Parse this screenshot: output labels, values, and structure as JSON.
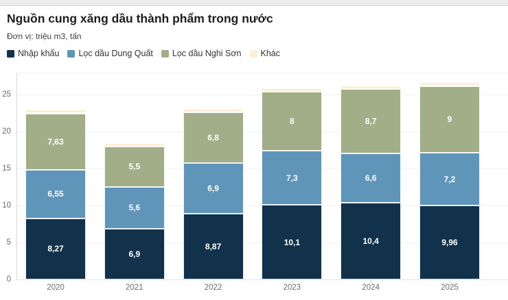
{
  "chart_data": {
    "type": "bar",
    "stacked": true,
    "title": "Nguồn cung xăng dầu thành phẩm trong nước",
    "unit_label": "Đơn vị: triệu m3, tấn",
    "categories": [
      "2020",
      "2021",
      "2022",
      "2023",
      "2024",
      "2025"
    ],
    "series": [
      {
        "name": "Nhập khẩu",
        "color": "#12324b",
        "values": [
          8.27,
          6.9,
          8.87,
          10.1,
          10.4,
          9.96
        ],
        "labels": [
          "8,27",
          "6,9",
          "8,87",
          "10,1",
          "10,4",
          "9,96"
        ]
      },
      {
        "name": "Lọc dầu Dung Quất",
        "color": "#6095ba",
        "values": [
          6.55,
          5.6,
          6.9,
          7.3,
          6.6,
          7.2
        ],
        "labels": [
          "6,55",
          "5,6",
          "6,9",
          "7,3",
          "6,6",
          "7,2"
        ]
      },
      {
        "name": "Lọc dầu Nghi Sơn",
        "color": "#a2ae88",
        "values": [
          7.63,
          5.5,
          6.8,
          8,
          8.7,
          9
        ],
        "labels": [
          "7,63",
          "5,5",
          "6,8",
          "8",
          "8,7",
          "9"
        ]
      },
      {
        "name": "Khác",
        "color": "#fbefd5",
        "values": [
          0.55,
          0.45,
          0.5,
          0.45,
          0.5,
          0.55
        ],
        "labels": [
          "",
          "",
          "",
          "",
          "",
          ""
        ],
        "estimated": true
      }
    ],
    "yticks": [
      0,
      5,
      10,
      15,
      20,
      25
    ],
    "ylim": [
      0,
      28
    ],
    "grid": true,
    "legend_position": "top",
    "value_label_color": "#ffffff",
    "axis_label_color": "#6b6b6b"
  }
}
